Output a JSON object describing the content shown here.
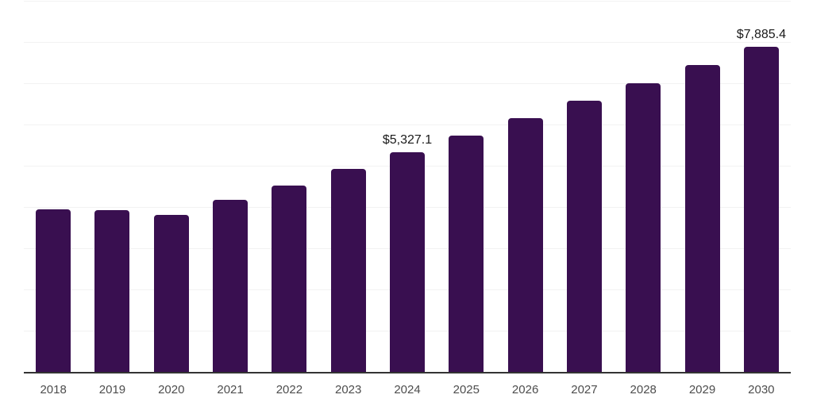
{
  "page": {
    "background_color": "#ffffff"
  },
  "chart_data": {
    "type": "bar",
    "categories": [
      "2018",
      "2019",
      "2020",
      "2021",
      "2022",
      "2023",
      "2024",
      "2025",
      "2026",
      "2027",
      "2028",
      "2029",
      "2030"
    ],
    "values": [
      3950,
      3930,
      3800,
      4165,
      4515,
      4930,
      5327.1,
      5735,
      6160,
      6575,
      6995,
      7440,
      7885.4
    ],
    "data_labels": [
      {
        "category": "2024",
        "text": "$5,327.1"
      },
      {
        "category": "2030",
        "text": "$7,885.4"
      }
    ],
    "xlabel": "",
    "ylabel": "",
    "ylim": [
      0,
      9000
    ],
    "gridline_step": 1000,
    "grid": true,
    "legend": false,
    "colors": {
      "bar": "#390F50",
      "gridline": "#f2f2f2",
      "axis": "#333333",
      "tick_label": "#4d4d4d",
      "value_label": "#1a1a1a"
    }
  }
}
